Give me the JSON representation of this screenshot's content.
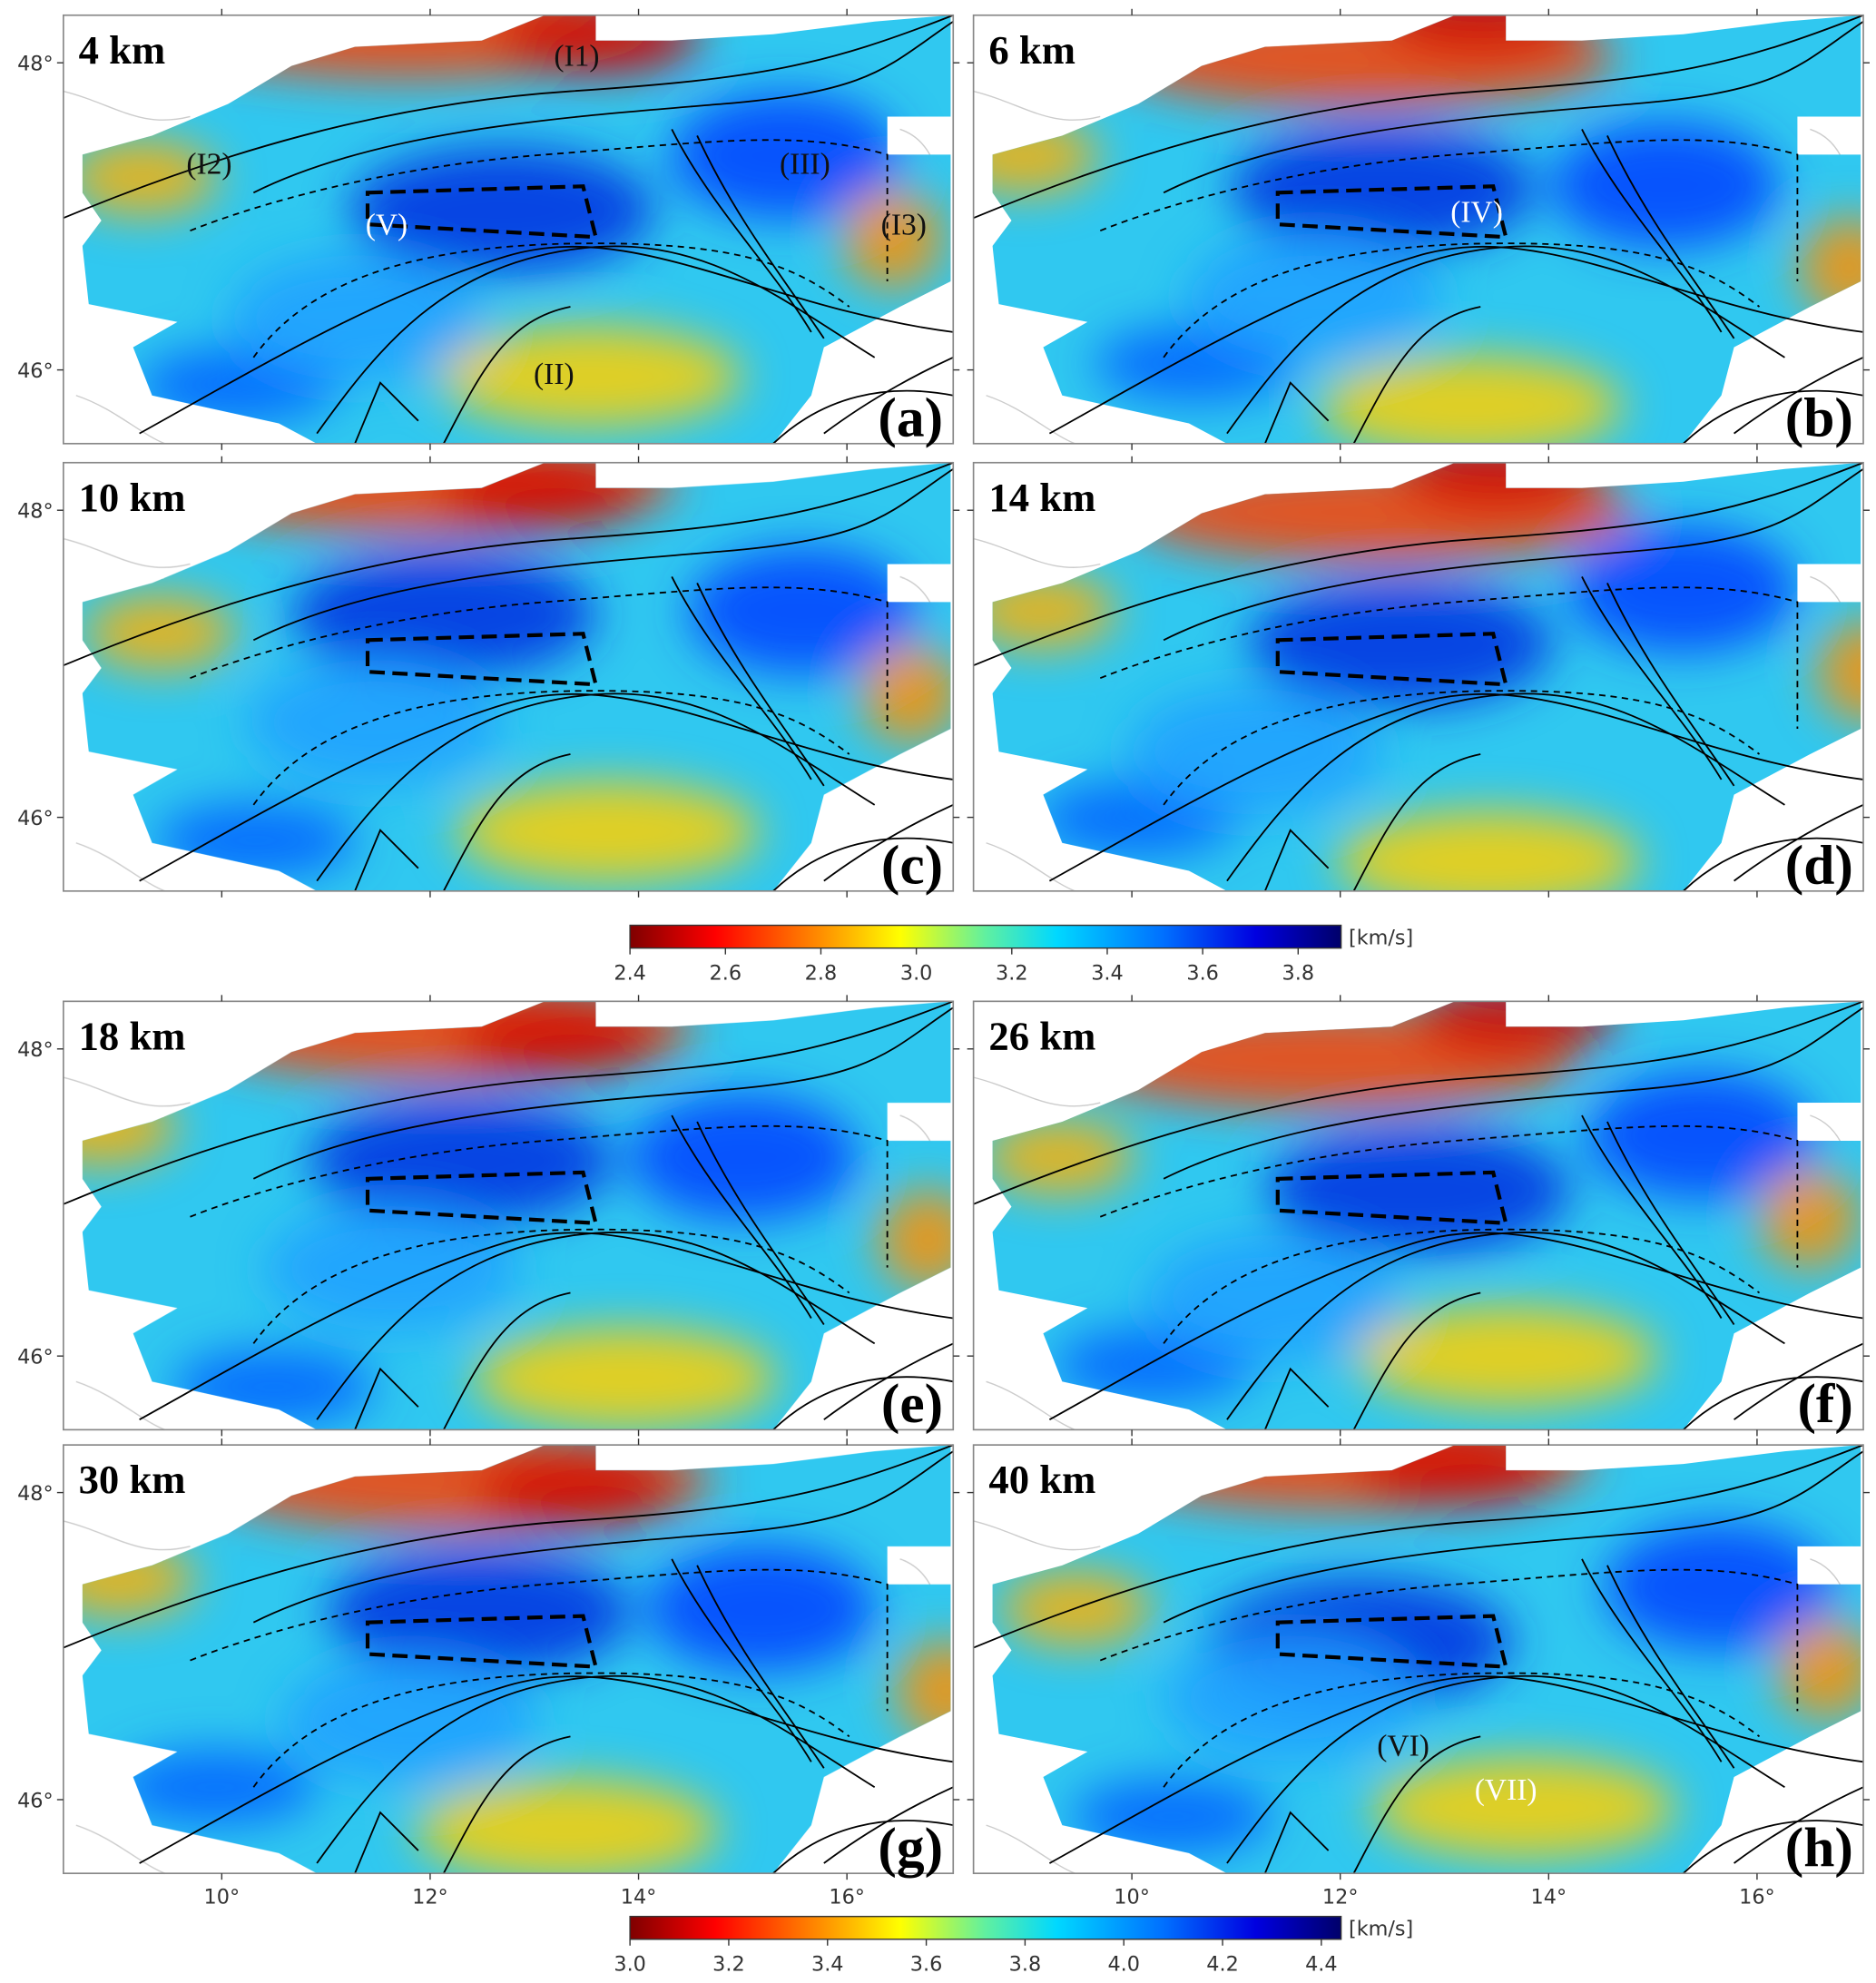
{
  "panels": [
    {
      "depth": "4 km",
      "label": "(a)",
      "annotations": [
        "(I1)",
        "(I2)",
        "(III)",
        "(V)",
        "(I3)",
        "(II)"
      ]
    },
    {
      "depth": "6 km",
      "label": "(b)",
      "annotations": [
        "(IV)"
      ]
    },
    {
      "depth": "10 km",
      "label": "(c)",
      "annotations": []
    },
    {
      "depth": "14 km",
      "label": "(d)",
      "annotations": []
    },
    {
      "depth": "18 km",
      "label": "(e)",
      "annotations": []
    },
    {
      "depth": "26 km",
      "label": "(f)",
      "annotations": []
    },
    {
      "depth": "30 km",
      "label": "(g)",
      "annotations": []
    },
    {
      "depth": "40 km",
      "label": "(h)",
      "annotations": [
        "(VI)",
        "(VII)"
      ]
    }
  ],
  "xlim": [
    8.48,
    17.02
  ],
  "ylim": [
    45.52,
    48.31
  ],
  "xticks": [
    {
      "value": 10,
      "label": "10°"
    },
    {
      "value": 12,
      "label": "12°"
    },
    {
      "value": 14,
      "label": "14°"
    },
    {
      "value": 16,
      "label": "16°"
    }
  ],
  "yticks": [
    {
      "value": 46,
      "label": "46°"
    },
    {
      "value": 48,
      "label": "48°"
    }
  ],
  "colorbars": [
    {
      "unit": "[km/s]",
      "lim": [
        2.4,
        3.89
      ],
      "ticks": [
        2.4,
        2.6,
        2.8,
        {
          "value": 3,
          "label": "3.0"
        },
        3.2,
        3.4,
        3.6,
        3.8
      ]
    },
    {
      "unit": "[km/s]",
      "lim": [
        3,
        4.44
      ],
      "ticks": [
        {
          "value": 3,
          "label": "3.0"
        },
        3.2,
        3.4,
        3.6,
        3.8,
        {
          "value": 4,
          "label": "4.0"
        },
        4.2,
        4.4
      ]
    }
  ]
}
